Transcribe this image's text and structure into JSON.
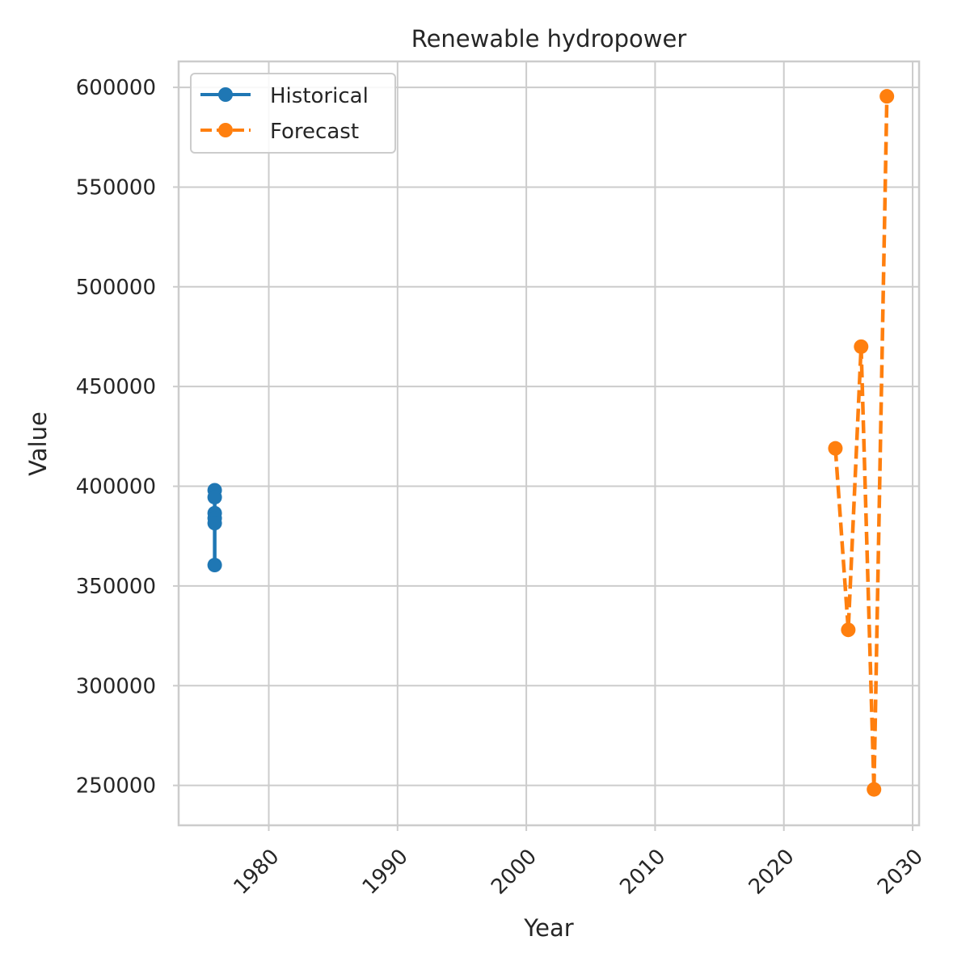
{
  "chart_data": {
    "type": "line",
    "title": "Renewable hydropower",
    "xlabel": "Year",
    "ylabel": "Value",
    "xlim": [
      1973,
      2030.5
    ],
    "ylim": [
      230000,
      613000
    ],
    "xticks": [
      1980,
      1990,
      2000,
      2010,
      2020,
      2030
    ],
    "yticks": [
      250000,
      300000,
      350000,
      400000,
      450000,
      500000,
      550000,
      600000
    ],
    "grid": true,
    "legend_position": "top-left",
    "series": [
      {
        "name": "Historical",
        "color": "#1f77b4",
        "line_style": "solid",
        "marker": "circle",
        "points": [
          {
            "x": 1975.8,
            "y": 398000
          },
          {
            "x": 1975.8,
            "y": 394500
          },
          {
            "x": 1975.8,
            "y": 386500
          },
          {
            "x": 1975.8,
            "y": 384000
          },
          {
            "x": 1975.8,
            "y": 381500
          },
          {
            "x": 1975.8,
            "y": 360500
          }
        ]
      },
      {
        "name": "Forecast",
        "color": "#ff7f0e",
        "line_style": "dashed",
        "marker": "circle",
        "points": [
          {
            "x": 2024,
            "y": 419000
          },
          {
            "x": 2025,
            "y": 328000
          },
          {
            "x": 2026,
            "y": 470000
          },
          {
            "x": 2027,
            "y": 248000
          },
          {
            "x": 2028,
            "y": 595500
          }
        ]
      }
    ]
  }
}
